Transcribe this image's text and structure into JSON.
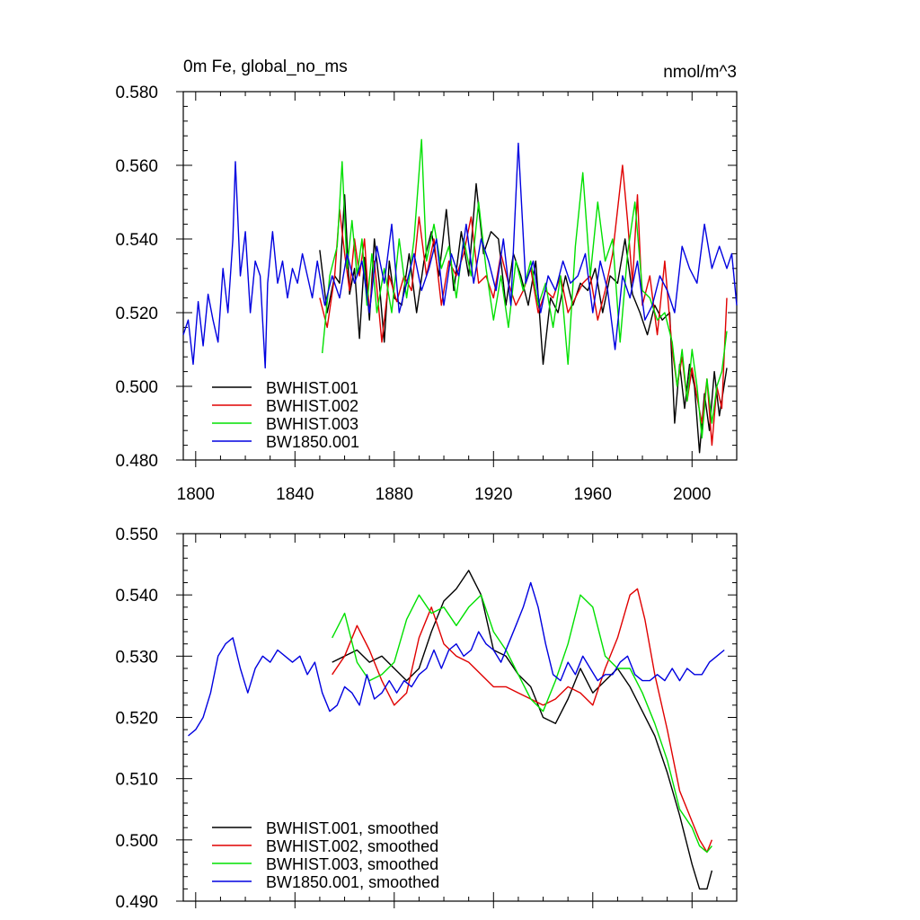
{
  "figure": {
    "title_left": "0m Fe, global_no_ms",
    "title_right": "nmol/m^3"
  },
  "colors": {
    "BWHIST.001": "#000000",
    "BWHIST.002": "#e00000",
    "BWHIST.003": "#00e000",
    "BW1850.001": "#0000e0"
  },
  "chart_data": [
    {
      "type": "line",
      "title": "0m Fe, global_no_ms",
      "units": "nmol/m^3",
      "xlim": [
        1795,
        2018
      ],
      "ylim": [
        0.48,
        0.58
      ],
      "xticks": [
        "1800",
        "1840",
        "1880",
        "1920",
        "1960",
        "2000"
      ],
      "yticks": [
        "0.480",
        "0.500",
        "0.520",
        "0.540",
        "0.560",
        "0.580"
      ],
      "legend": "bottom-left",
      "series": [
        {
          "name": "BWHIST.001",
          "color": "#000000",
          "x": [
            1850,
            1853,
            1856,
            1858,
            1860,
            1862,
            1864,
            1866,
            1868,
            1870,
            1872,
            1874,
            1876,
            1878,
            1880,
            1883,
            1886,
            1889,
            1892,
            1895,
            1898,
            1901,
            1904,
            1907,
            1910,
            1913,
            1916,
            1919,
            1922,
            1925,
            1928,
            1931,
            1934,
            1937,
            1940,
            1943,
            1946,
            1949,
            1952,
            1955,
            1958,
            1961,
            1964,
            1967,
            1970,
            1973,
            1976,
            1979,
            1982,
            1985,
            1988,
            1991,
            1993,
            1995,
            1997,
            1999,
            2001,
            2003,
            2005,
            2007,
            2009,
            2011,
            2014
          ],
          "y": [
            0.537,
            0.52,
            0.53,
            0.528,
            0.552,
            0.525,
            0.532,
            0.513,
            0.535,
            0.518,
            0.54,
            0.528,
            0.512,
            0.534,
            0.524,
            0.522,
            0.536,
            0.52,
            0.534,
            0.542,
            0.53,
            0.548,
            0.526,
            0.542,
            0.53,
            0.555,
            0.536,
            0.542,
            0.54,
            0.522,
            0.536,
            0.53,
            0.522,
            0.534,
            0.506,
            0.524,
            0.52,
            0.53,
            0.522,
            0.528,
            0.526,
            0.532,
            0.52,
            0.53,
            0.528,
            0.54,
            0.525,
            0.52,
            0.514,
            0.522,
            0.518,
            0.52,
            0.49,
            0.506,
            0.494,
            0.506,
            0.5,
            0.482,
            0.498,
            0.488,
            0.504,
            0.492,
            0.505
          ]
        },
        {
          "name": "BWHIST.002",
          "color": "#e00000",
          "x": [
            1850,
            1853,
            1856,
            1858,
            1860,
            1862,
            1864,
            1866,
            1868,
            1870,
            1872,
            1875,
            1878,
            1881,
            1884,
            1887,
            1890,
            1893,
            1896,
            1899,
            1902,
            1905,
            1908,
            1911,
            1914,
            1917,
            1920,
            1923,
            1926,
            1929,
            1932,
            1935,
            1938,
            1941,
            1944,
            1947,
            1950,
            1953,
            1956,
            1959,
            1962,
            1965,
            1968,
            1970,
            1972,
            1974,
            1976,
            1978,
            1980,
            1983,
            1986,
            1989,
            1992,
            1994,
            1996,
            1998,
            2000,
            2002,
            2004,
            2006,
            2008,
            2010,
            2012,
            2014
          ],
          "y": [
            0.524,
            0.516,
            0.53,
            0.548,
            0.536,
            0.526,
            0.54,
            0.53,
            0.54,
            0.52,
            0.534,
            0.512,
            0.53,
            0.523,
            0.53,
            0.526,
            0.546,
            0.53,
            0.54,
            0.522,
            0.534,
            0.53,
            0.536,
            0.546,
            0.528,
            0.53,
            0.524,
            0.536,
            0.528,
            0.522,
            0.526,
            0.532,
            0.52,
            0.526,
            0.524,
            0.53,
            0.52,
            0.524,
            0.528,
            0.53,
            0.518,
            0.526,
            0.536,
            0.548,
            0.56,
            0.545,
            0.528,
            0.552,
            0.522,
            0.53,
            0.514,
            0.534,
            0.51,
            0.5,
            0.508,
            0.496,
            0.505,
            0.497,
            0.49,
            0.502,
            0.484,
            0.5,
            0.494,
            0.524
          ]
        },
        {
          "name": "BWHIST.003",
          "color": "#00e000",
          "x": [
            1851,
            1854,
            1857,
            1859,
            1861,
            1863,
            1865,
            1867,
            1869,
            1871,
            1873,
            1876,
            1879,
            1882,
            1885,
            1888,
            1891,
            1893,
            1896,
            1899,
            1902,
            1905,
            1908,
            1911,
            1914,
            1917,
            1920,
            1923,
            1926,
            1929,
            1932,
            1935,
            1938,
            1941,
            1944,
            1947,
            1950,
            1953,
            1956,
            1959,
            1962,
            1965,
            1968,
            1971,
            1974,
            1977,
            1980,
            1983,
            1986,
            1989,
            1992,
            1994,
            1996,
            1998,
            2000,
            2002,
            2004,
            2006,
            2008,
            2010,
            2012,
            2014
          ],
          "y": [
            0.509,
            0.53,
            0.538,
            0.561,
            0.532,
            0.545,
            0.53,
            0.54,
            0.522,
            0.536,
            0.52,
            0.532,
            0.52,
            0.54,
            0.524,
            0.54,
            0.567,
            0.534,
            0.544,
            0.532,
            0.538,
            0.524,
            0.54,
            0.53,
            0.55,
            0.532,
            0.518,
            0.53,
            0.516,
            0.534,
            0.526,
            0.534,
            0.522,
            0.528,
            0.516,
            0.53,
            0.506,
            0.538,
            0.558,
            0.53,
            0.55,
            0.534,
            0.54,
            0.512,
            0.536,
            0.55,
            0.526,
            0.524,
            0.518,
            0.52,
            0.512,
            0.5,
            0.51,
            0.496,
            0.51,
            0.5,
            0.486,
            0.502,
            0.49,
            0.5,
            0.504,
            0.515
          ]
        },
        {
          "name": "BW1850.001",
          "color": "#0000e0",
          "x": [
            1795,
            1797,
            1799,
            1801,
            1803,
            1805,
            1807,
            1809,
            1811,
            1813,
            1815,
            1816,
            1818,
            1820,
            1822,
            1824,
            1826,
            1828,
            1829,
            1831,
            1833,
            1835,
            1837,
            1839,
            1841,
            1843,
            1845,
            1847,
            1849,
            1852,
            1855,
            1858,
            1861,
            1864,
            1867,
            1870,
            1873,
            1876,
            1879,
            1882,
            1885,
            1888,
            1891,
            1894,
            1897,
            1900,
            1903,
            1906,
            1909,
            1912,
            1915,
            1918,
            1921,
            1924,
            1927,
            1930,
            1933,
            1936,
            1939,
            1942,
            1945,
            1948,
            1951,
            1954,
            1957,
            1960,
            1963,
            1966,
            1969,
            1972,
            1975,
            1978,
            1981,
            1984,
            1987,
            1990,
            1993,
            1996,
            1999,
            2002,
            2005,
            2008,
            2011,
            2014,
            2016,
            2018
          ],
          "y": [
            0.514,
            0.518,
            0.506,
            0.523,
            0.511,
            0.525,
            0.518,
            0.512,
            0.532,
            0.52,
            0.54,
            0.561,
            0.53,
            0.542,
            0.52,
            0.534,
            0.53,
            0.505,
            0.528,
            0.542,
            0.528,
            0.534,
            0.524,
            0.532,
            0.528,
            0.536,
            0.53,
            0.524,
            0.534,
            0.522,
            0.53,
            0.524,
            0.536,
            0.528,
            0.534,
            0.52,
            0.538,
            0.528,
            0.544,
            0.52,
            0.528,
            0.536,
            0.526,
            0.532,
            0.54,
            0.522,
            0.536,
            0.53,
            0.544,
            0.528,
            0.54,
            0.534,
            0.526,
            0.54,
            0.522,
            0.566,
            0.528,
            0.534,
            0.52,
            0.53,
            0.526,
            0.534,
            0.528,
            0.53,
            0.536,
            0.52,
            0.534,
            0.526,
            0.51,
            0.53,
            0.524,
            0.534,
            0.518,
            0.522,
            0.53,
            0.526,
            0.52,
            0.538,
            0.532,
            0.528,
            0.544,
            0.532,
            0.538,
            0.532,
            0.536,
            0.522
          ]
        }
      ]
    },
    {
      "type": "line",
      "xlim": [
        1795,
        2018
      ],
      "ylim": [
        0.49,
        0.55
      ],
      "yticks": [
        "0.490",
        "0.500",
        "0.510",
        "0.520",
        "0.530",
        "0.540",
        "0.550"
      ],
      "legend": "bottom-left",
      "series": [
        {
          "name": "BWHIST.001, smoothed",
          "color": "#000000",
          "x": [
            1855,
            1860,
            1865,
            1870,
            1875,
            1880,
            1885,
            1890,
            1895,
            1900,
            1905,
            1910,
            1915,
            1920,
            1925,
            1930,
            1935,
            1940,
            1945,
            1950,
            1955,
            1960,
            1965,
            1970,
            1975,
            1980,
            1985,
            1990,
            1995,
            2000,
            2003,
            2006,
            2008
          ],
          "y": [
            0.529,
            0.53,
            0.531,
            0.529,
            0.53,
            0.528,
            0.526,
            0.528,
            0.534,
            0.539,
            0.541,
            0.544,
            0.54,
            0.531,
            0.53,
            0.527,
            0.525,
            0.52,
            0.519,
            0.523,
            0.528,
            0.524,
            0.526,
            0.528,
            0.525,
            0.521,
            0.517,
            0.511,
            0.504,
            0.496,
            0.492,
            0.492,
            0.495
          ]
        },
        {
          "name": "BWHIST.002, smoothed",
          "color": "#e00000",
          "x": [
            1855,
            1860,
            1865,
            1870,
            1875,
            1880,
            1885,
            1890,
            1895,
            1900,
            1905,
            1910,
            1915,
            1920,
            1925,
            1930,
            1935,
            1940,
            1945,
            1950,
            1955,
            1960,
            1965,
            1970,
            1975,
            1978,
            1981,
            1985,
            1990,
            1995,
            2000,
            2003,
            2006,
            2008
          ],
          "y": [
            0.527,
            0.53,
            0.535,
            0.531,
            0.526,
            0.522,
            0.524,
            0.533,
            0.538,
            0.532,
            0.53,
            0.529,
            0.527,
            0.525,
            0.525,
            0.524,
            0.523,
            0.522,
            0.523,
            0.525,
            0.524,
            0.522,
            0.528,
            0.533,
            0.54,
            0.541,
            0.536,
            0.527,
            0.518,
            0.508,
            0.503,
            0.5,
            0.498,
            0.5
          ]
        },
        {
          "name": "BWHIST.003, smoothed",
          "color": "#00e000",
          "x": [
            1855,
            1860,
            1865,
            1870,
            1875,
            1880,
            1885,
            1890,
            1895,
            1900,
            1905,
            1910,
            1915,
            1920,
            1925,
            1930,
            1935,
            1940,
            1945,
            1950,
            1955,
            1960,
            1965,
            1970,
            1975,
            1980,
            1985,
            1990,
            1995,
            2000,
            2003,
            2006,
            2008
          ],
          "y": [
            0.533,
            0.537,
            0.529,
            0.526,
            0.527,
            0.529,
            0.536,
            0.54,
            0.537,
            0.538,
            0.535,
            0.538,
            0.54,
            0.534,
            0.531,
            0.527,
            0.523,
            0.521,
            0.526,
            0.532,
            0.54,
            0.538,
            0.53,
            0.528,
            0.528,
            0.524,
            0.519,
            0.513,
            0.505,
            0.502,
            0.499,
            0.498,
            0.499
          ]
        },
        {
          "name": "BW1850.001, smoothed",
          "color": "#0000e0",
          "x": [
            1797,
            1800,
            1803,
            1806,
            1809,
            1812,
            1815,
            1818,
            1821,
            1824,
            1827,
            1830,
            1833,
            1836,
            1839,
            1842,
            1845,
            1848,
            1851,
            1854,
            1857,
            1860,
            1863,
            1866,
            1869,
            1872,
            1875,
            1878,
            1881,
            1884,
            1887,
            1890,
            1893,
            1896,
            1899,
            1902,
            1905,
            1908,
            1911,
            1914,
            1917,
            1920,
            1923,
            1926,
            1929,
            1932,
            1935,
            1938,
            1941,
            1944,
            1947,
            1950,
            1953,
            1956,
            1959,
            1962,
            1965,
            1968,
            1971,
            1974,
            1977,
            1980,
            1983,
            1986,
            1989,
            1992,
            1995,
            1998,
            2001,
            2004,
            2007,
            2010,
            2013
          ],
          "y": [
            0.517,
            0.518,
            0.52,
            0.524,
            0.53,
            0.532,
            0.533,
            0.528,
            0.524,
            0.528,
            0.53,
            0.529,
            0.531,
            0.53,
            0.529,
            0.53,
            0.527,
            0.529,
            0.524,
            0.521,
            0.522,
            0.525,
            0.524,
            0.522,
            0.527,
            0.523,
            0.524,
            0.526,
            0.524,
            0.526,
            0.525,
            0.527,
            0.528,
            0.531,
            0.528,
            0.531,
            0.532,
            0.53,
            0.531,
            0.534,
            0.532,
            0.531,
            0.529,
            0.532,
            0.535,
            0.538,
            0.542,
            0.538,
            0.532,
            0.527,
            0.526,
            0.529,
            0.527,
            0.53,
            0.528,
            0.526,
            0.527,
            0.527,
            0.529,
            0.53,
            0.527,
            0.526,
            0.526,
            0.527,
            0.526,
            0.528,
            0.526,
            0.528,
            0.527,
            0.527,
            0.529,
            0.53,
            0.531
          ]
        }
      ]
    }
  ]
}
